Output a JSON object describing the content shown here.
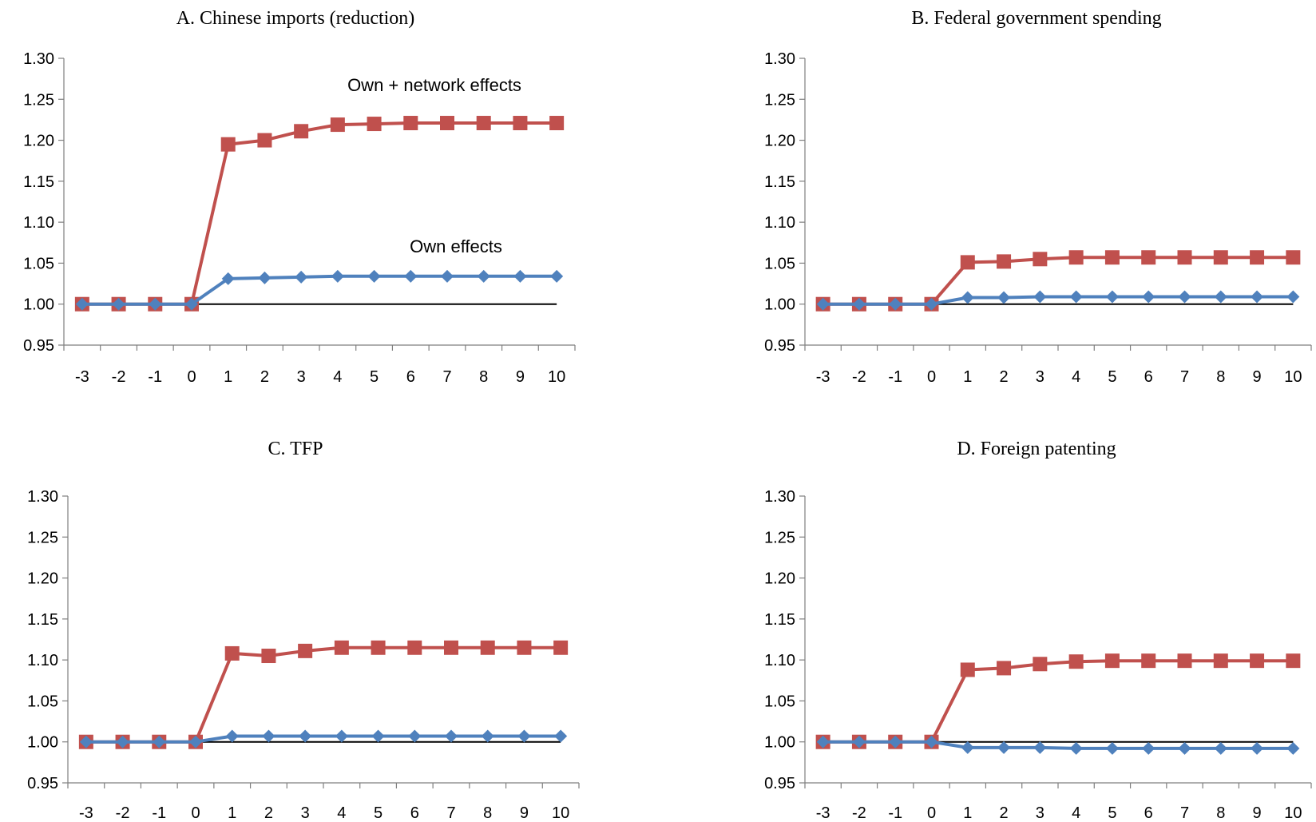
{
  "chart_data": [
    {
      "type": "line",
      "title": "A. Chinese imports (reduction)",
      "xlabel": "",
      "ylabel": "",
      "x": [
        -3,
        -2,
        -1,
        0,
        1,
        2,
        3,
        4,
        5,
        6,
        7,
        8,
        9,
        10
      ],
      "ylim": [
        0.95,
        1.3
      ],
      "yticks": [
        "1.30",
        "1.25",
        "1.20",
        "1.15",
        "1.10",
        "1.05",
        "1.00",
        "0.95"
      ],
      "grid": false,
      "reference_line": 1.0,
      "series": [
        {
          "name": "Own + network effects",
          "color": "#C0504D",
          "marker": "square",
          "values": [
            1.0,
            1.0,
            1.0,
            1.0,
            1.195,
            1.2,
            1.211,
            1.219,
            1.22,
            1.221,
            1.221,
            1.221,
            1.221,
            1.221
          ]
        },
        {
          "name": "Own effects",
          "color": "#4F81BD",
          "marker": "diamond",
          "values": [
            1.0,
            1.0,
            1.0,
            1.0,
            1.031,
            1.032,
            1.033,
            1.034,
            1.034,
            1.034,
            1.034,
            1.034,
            1.034,
            1.034
          ]
        }
      ]
    },
    {
      "type": "line",
      "title": "B. Federal government spending",
      "xlabel": "",
      "ylabel": "",
      "x": [
        -3,
        -2,
        -1,
        0,
        1,
        2,
        3,
        4,
        5,
        6,
        7,
        8,
        9,
        10
      ],
      "ylim": [
        0.95,
        1.3
      ],
      "yticks": [
        "1.30",
        "1.25",
        "1.20",
        "1.15",
        "1.10",
        "1.05",
        "1.00",
        "0.95"
      ],
      "grid": false,
      "reference_line": 1.0,
      "series": [
        {
          "color": "#C0504D",
          "marker": "square",
          "values": [
            1.0,
            1.0,
            1.0,
            1.0,
            1.051,
            1.052,
            1.055,
            1.057,
            1.057,
            1.057,
            1.057,
            1.057,
            1.057,
            1.057
          ]
        },
        {
          "color": "#4F81BD",
          "marker": "diamond",
          "values": [
            1.0,
            1.0,
            1.0,
            1.0,
            1.008,
            1.008,
            1.009,
            1.009,
            1.009,
            1.009,
            1.009,
            1.009,
            1.009,
            1.009
          ]
        }
      ]
    },
    {
      "type": "line",
      "title": "C. TFP",
      "xlabel": "",
      "ylabel": "",
      "x": [
        -3,
        -2,
        -1,
        0,
        1,
        2,
        3,
        4,
        5,
        6,
        7,
        8,
        9,
        10
      ],
      "ylim": [
        0.95,
        1.3
      ],
      "yticks": [
        "1.30",
        "1.25",
        "1.20",
        "1.15",
        "1.10",
        "1.05",
        "1.00",
        "0.95"
      ],
      "grid": false,
      "reference_line": 1.0,
      "series": [
        {
          "color": "#C0504D",
          "marker": "square",
          "values": [
            1.0,
            1.0,
            1.0,
            1.0,
            1.108,
            1.105,
            1.111,
            1.115,
            1.115,
            1.115,
            1.115,
            1.115,
            1.115,
            1.115
          ]
        },
        {
          "color": "#4F81BD",
          "marker": "diamond",
          "values": [
            1.0,
            1.0,
            1.0,
            1.0,
            1.007,
            1.007,
            1.007,
            1.007,
            1.007,
            1.007,
            1.007,
            1.007,
            1.007,
            1.007
          ]
        }
      ]
    },
    {
      "type": "line",
      "title": "D. Foreign patenting",
      "xlabel": "",
      "ylabel": "",
      "x": [
        -3,
        -2,
        -1,
        0,
        1,
        2,
        3,
        4,
        5,
        6,
        7,
        8,
        9,
        10
      ],
      "ylim": [
        0.95,
        1.3
      ],
      "yticks": [
        "1.30",
        "1.25",
        "1.20",
        "1.15",
        "1.10",
        "1.05",
        "1.00",
        "0.95"
      ],
      "grid": false,
      "reference_line": 1.0,
      "series": [
        {
          "color": "#C0504D",
          "marker": "square",
          "values": [
            1.0,
            1.0,
            1.0,
            1.0,
            1.088,
            1.09,
            1.095,
            1.098,
            1.099,
            1.099,
            1.099,
            1.099,
            1.099,
            1.099
          ]
        },
        {
          "color": "#4F81BD",
          "marker": "diamond",
          "values": [
            1.0,
            1.0,
            1.0,
            1.0,
            0.993,
            0.993,
            0.993,
            0.992,
            0.992,
            0.992,
            0.992,
            0.992,
            0.992,
            0.992
          ]
        }
      ]
    }
  ]
}
